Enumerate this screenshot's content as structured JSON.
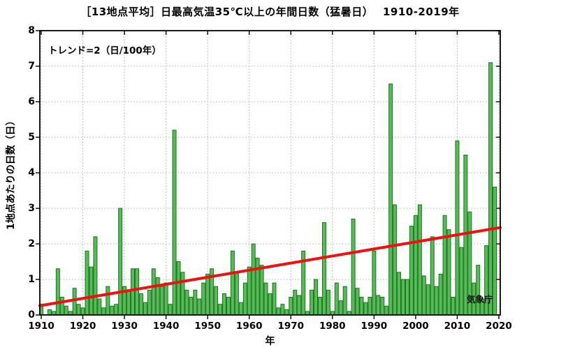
{
  "title": "［13地点平均］日最高気温35℃以上の年間日数（猛暑日）　 1910-2019年",
  "annotation": "トレンド=2（日/100年）",
  "watermark": "気象庁",
  "xlabel": "年",
  "ylabel": "1地点あたりの日数（日）",
  "colors": {
    "bar_fill": "#5db75d",
    "bar_edge": "#0f7d12",
    "trend_line": "#ee1111",
    "grid": "#b4b4b4",
    "frame": "#000000",
    "text": "#000000"
  },
  "chart_data": {
    "type": "bar",
    "title": "［13地点平均］日最高気温35℃以上の年間日数（猛暑日） 1910-2019年",
    "xlabel": "年",
    "ylabel": "1地点あたりの日数（日）",
    "start_year": 1910,
    "end_year": 2019,
    "values": [
      0.3,
      0,
      0.15,
      0.1,
      1.3,
      0.5,
      0.25,
      0.1,
      0.75,
      0.3,
      0.2,
      1.8,
      1.35,
      2.2,
      0.45,
      0.2,
      0.8,
      0.25,
      0.3,
      3.0,
      0.8,
      0.7,
      1.3,
      1.3,
      0.6,
      0.35,
      0.7,
      1.3,
      1.05,
      0.8,
      0.9,
      0.3,
      5.2,
      1.5,
      1.2,
      0.7,
      0.5,
      0.7,
      0.45,
      0.9,
      1.15,
      1.3,
      0.8,
      0.3,
      0.6,
      0.5,
      1.8,
      1.2,
      0.35,
      0.9,
      1.35,
      2.0,
      1.6,
      1.4,
      0.9,
      0.6,
      0.9,
      0.2,
      0.3,
      0.15,
      0.5,
      0.7,
      0.55,
      1.8,
      0.1,
      0.7,
      1.0,
      0.5,
      2.6,
      0.7,
      0.1,
      0.9,
      0.4,
      0.8,
      0.1,
      2.7,
      0.75,
      0.5,
      0.35,
      0.5,
      1.8,
      0.55,
      0.5,
      0.25,
      6.5,
      3.1,
      1.2,
      1.0,
      1.0,
      2.5,
      2.8,
      3.1,
      1.1,
      0.85,
      2.2,
      0.8,
      1.15,
      2.8,
      2.4,
      0.5,
      4.9,
      1.9,
      4.5,
      2.9,
      0.9,
      1.4,
      0.45,
      1.95,
      7.1,
      3.6
    ],
    "trend": {
      "label": "トレンド=2（日/100年）",
      "days_per_100yr": 2,
      "start": {
        "year": 1909.66,
        "value": 0.26
      },
      "end": {
        "year": 2020.34,
        "value": 2.46
      }
    },
    "xlim": [
      1909.66,
      2020.34
    ],
    "ylim": [
      0,
      8
    ],
    "xticks": [
      1910,
      1920,
      1930,
      1940,
      1950,
      1960,
      1970,
      1980,
      1990,
      2000,
      2010,
      2020
    ],
    "yticks": [
      0,
      1,
      2,
      3,
      4,
      5,
      6,
      7,
      8
    ],
    "grid": "dotted",
    "legend": "none"
  }
}
